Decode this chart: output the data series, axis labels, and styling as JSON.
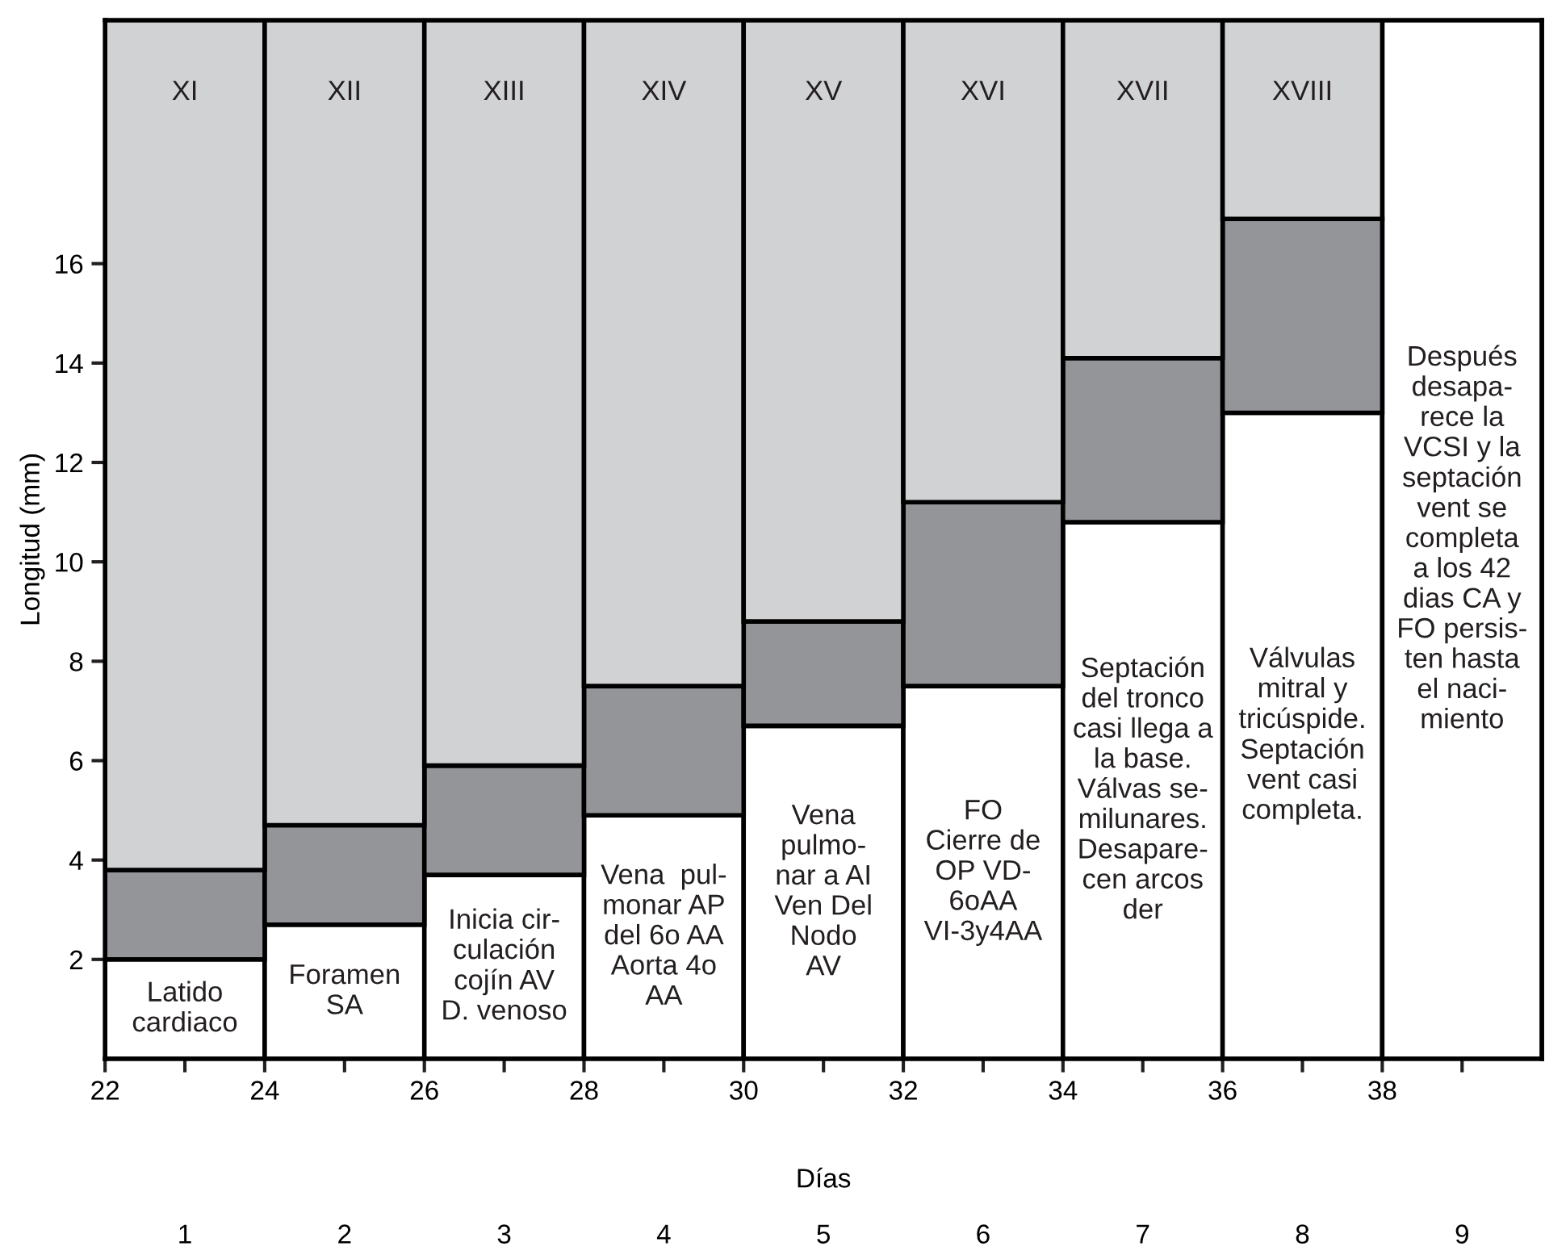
{
  "chart_data": {
    "type": "bar",
    "stacked": true,
    "xlabel": "Días",
    "ylabel": "Longitud (mm)",
    "x": [
      23,
      25,
      27,
      29,
      31,
      33,
      35,
      37,
      39
    ],
    "series": [
      {
        "color": "#ffffff",
        "values": [
          2.0,
          2.7,
          3.7,
          4.9,
          6.7,
          7.5,
          10.8,
          13.0,
          20.9
        ]
      },
      {
        "color": "#939598",
        "values": [
          1.8,
          2.0,
          2.2,
          2.6,
          2.1,
          3.7,
          3.3,
          3.9,
          null
        ]
      },
      {
        "color": "#d1d2d4",
        "values": [
          17.1,
          16.2,
          15.0,
          13.4,
          12.1,
          9.7,
          6.8,
          4.0,
          null
        ]
      }
    ],
    "xlim": [
      22,
      40
    ],
    "ylim": [
      0,
      20.9
    ],
    "xticks": [
      22,
      {
        "value": 23,
        "label": null
      },
      24,
      {
        "value": 25,
        "label": null
      },
      26,
      {
        "value": 27,
        "label": null
      },
      28,
      {
        "value": 29,
        "label": null
      },
      30,
      {
        "value": 31,
        "label": null
      },
      32,
      {
        "value": 33,
        "label": null
      },
      34,
      {
        "value": 35,
        "label": null
      },
      36,
      {
        "value": 37,
        "label": null
      },
      38,
      {
        "value": 39,
        "label": null
      }
    ],
    "yticks": [
      2,
      4,
      6,
      8,
      10,
      12,
      14,
      16
    ],
    "grid": false,
    "legend": false,
    "annotations": [
      "XI",
      "XII",
      "XIII",
      "XIV",
      "XV",
      "XVI",
      "XVII",
      "XVIII",
      "Latido\ncardiaco",
      "Foramen\nSA",
      "Inicia cir-\nculación\ncojín AV\nD. venoso",
      "Vena  pul-\nmonar AP\ndel 6o AA\nAorta 4o\nAA",
      "Vena\npulmo-\nnar a AI\nVen Del\nNodo\nAV",
      "FO\nCierre de\nOP VD-\n6oAA\nVI-3y4AA",
      "Septación\ndel tronco\ncasi llega a\nla base.\nVálvas se-\nmilunares.\nDesapare-\ncen arcos\nder",
      "Válvulas\nmitral y\ntricúspide.\nSeptación\nvent casi\ncompleta.",
      "Después\ndesapa-\nrece la\nVCSI y la\nseptación\nvent se\ncompleta\na los 42\ndias CA y\nFO persis-\nten hasta\nel naci-\nmiento",
      "1",
      "2",
      "3",
      "4",
      "5",
      "6",
      "7",
      "8",
      "9"
    ]
  }
}
